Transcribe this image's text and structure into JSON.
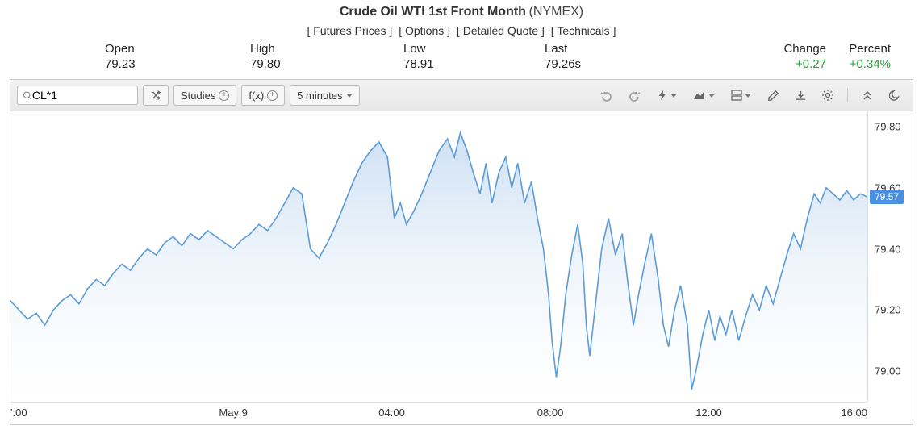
{
  "header": {
    "title_main": "Crude Oil WTI 1st Front Month",
    "title_sub": "(NYMEX)",
    "links": [
      "Futures Prices",
      "Options",
      "Detailed Quote",
      "Technicals"
    ]
  },
  "stats": {
    "open": {
      "label": "Open",
      "value": "79.23"
    },
    "high": {
      "label": "High",
      "value": "79.80"
    },
    "low": {
      "label": "Low",
      "value": "78.91"
    },
    "last": {
      "label": "Last",
      "value": "79.26s"
    },
    "change": {
      "label": "Change",
      "value": "+0.27",
      "positive": true
    },
    "percent": {
      "label": "Percent",
      "value": "+0.34%",
      "positive": true
    }
  },
  "toolbar": {
    "search_value": "CL*1",
    "studies_label": "Studies",
    "fx_label": "f(x)",
    "interval_label": "5 minutes"
  },
  "chart": {
    "type": "area",
    "line_color": "#5a9bd8",
    "area_top_color": "#c9ddf2",
    "area_bottom_color": "#ffffff",
    "line_width": 1.6,
    "background": "#ffffff",
    "y_axis": {
      "min": 78.9,
      "max": 79.85,
      "ticks": [
        79.0,
        79.2,
        79.4,
        79.6,
        79.8
      ],
      "tick_labels": [
        "79.00",
        "79.20",
        "79.40",
        "79.60",
        "79.80"
      ]
    },
    "x_axis": {
      "tick_positions": [
        0.0,
        0.26,
        0.445,
        0.63,
        0.815,
        1.0
      ],
      "tick_labels": [
        "':00",
        "May 9",
        "04:00",
        "08:00",
        "12:00",
        "16:00"
      ]
    },
    "current_price": {
      "value": 79.57,
      "label": "79.57"
    },
    "data": [
      {
        "x": 0.0,
        "y": 79.23
      },
      {
        "x": 0.01,
        "y": 79.2
      },
      {
        "x": 0.02,
        "y": 79.17
      },
      {
        "x": 0.03,
        "y": 79.19
      },
      {
        "x": 0.04,
        "y": 79.15
      },
      {
        "x": 0.05,
        "y": 79.2
      },
      {
        "x": 0.06,
        "y": 79.23
      },
      {
        "x": 0.07,
        "y": 79.25
      },
      {
        "x": 0.08,
        "y": 79.22
      },
      {
        "x": 0.09,
        "y": 79.27
      },
      {
        "x": 0.1,
        "y": 79.3
      },
      {
        "x": 0.11,
        "y": 79.28
      },
      {
        "x": 0.12,
        "y": 79.32
      },
      {
        "x": 0.13,
        "y": 79.35
      },
      {
        "x": 0.14,
        "y": 79.33
      },
      {
        "x": 0.15,
        "y": 79.37
      },
      {
        "x": 0.16,
        "y": 79.4
      },
      {
        "x": 0.17,
        "y": 79.38
      },
      {
        "x": 0.18,
        "y": 79.42
      },
      {
        "x": 0.19,
        "y": 79.44
      },
      {
        "x": 0.2,
        "y": 79.41
      },
      {
        "x": 0.21,
        "y": 79.45
      },
      {
        "x": 0.22,
        "y": 79.43
      },
      {
        "x": 0.23,
        "y": 79.46
      },
      {
        "x": 0.24,
        "y": 79.44
      },
      {
        "x": 0.25,
        "y": 79.42
      },
      {
        "x": 0.26,
        "y": 79.4
      },
      {
        "x": 0.27,
        "y": 79.43
      },
      {
        "x": 0.28,
        "y": 79.45
      },
      {
        "x": 0.29,
        "y": 79.48
      },
      {
        "x": 0.3,
        "y": 79.46
      },
      {
        "x": 0.31,
        "y": 79.5
      },
      {
        "x": 0.32,
        "y": 79.55
      },
      {
        "x": 0.33,
        "y": 79.6
      },
      {
        "x": 0.34,
        "y": 79.58
      },
      {
        "x": 0.35,
        "y": 79.4
      },
      {
        "x": 0.36,
        "y": 79.37
      },
      {
        "x": 0.37,
        "y": 79.42
      },
      {
        "x": 0.38,
        "y": 79.48
      },
      {
        "x": 0.39,
        "y": 79.55
      },
      {
        "x": 0.4,
        "y": 79.62
      },
      {
        "x": 0.41,
        "y": 79.68
      },
      {
        "x": 0.42,
        "y": 79.72
      },
      {
        "x": 0.43,
        "y": 79.75
      },
      {
        "x": 0.44,
        "y": 79.7
      },
      {
        "x": 0.448,
        "y": 79.5
      },
      {
        "x": 0.455,
        "y": 79.55
      },
      {
        "x": 0.462,
        "y": 79.48
      },
      {
        "x": 0.47,
        "y": 79.52
      },
      {
        "x": 0.48,
        "y": 79.58
      },
      {
        "x": 0.49,
        "y": 79.65
      },
      {
        "x": 0.5,
        "y": 79.72
      },
      {
        "x": 0.51,
        "y": 79.76
      },
      {
        "x": 0.518,
        "y": 79.7
      },
      {
        "x": 0.525,
        "y": 79.78
      },
      {
        "x": 0.533,
        "y": 79.72
      },
      {
        "x": 0.54,
        "y": 79.65
      },
      {
        "x": 0.548,
        "y": 79.58
      },
      {
        "x": 0.555,
        "y": 79.68
      },
      {
        "x": 0.562,
        "y": 79.55
      },
      {
        "x": 0.57,
        "y": 79.65
      },
      {
        "x": 0.578,
        "y": 79.7
      },
      {
        "x": 0.585,
        "y": 79.6
      },
      {
        "x": 0.592,
        "y": 79.68
      },
      {
        "x": 0.6,
        "y": 79.55
      },
      {
        "x": 0.608,
        "y": 79.62
      },
      {
        "x": 0.615,
        "y": 79.5
      },
      {
        "x": 0.622,
        "y": 79.4
      },
      {
        "x": 0.628,
        "y": 79.25
      },
      {
        "x": 0.632,
        "y": 79.1
      },
      {
        "x": 0.637,
        "y": 78.98
      },
      {
        "x": 0.642,
        "y": 79.08
      },
      {
        "x": 0.648,
        "y": 79.25
      },
      {
        "x": 0.655,
        "y": 79.38
      },
      {
        "x": 0.662,
        "y": 79.48
      },
      {
        "x": 0.668,
        "y": 79.35
      },
      {
        "x": 0.672,
        "y": 79.15
      },
      {
        "x": 0.676,
        "y": 79.05
      },
      {
        "x": 0.682,
        "y": 79.2
      },
      {
        "x": 0.69,
        "y": 79.4
      },
      {
        "x": 0.698,
        "y": 79.5
      },
      {
        "x": 0.706,
        "y": 79.38
      },
      {
        "x": 0.714,
        "y": 79.45
      },
      {
        "x": 0.72,
        "y": 79.3
      },
      {
        "x": 0.727,
        "y": 79.15
      },
      {
        "x": 0.733,
        "y": 79.25
      },
      {
        "x": 0.74,
        "y": 79.35
      },
      {
        "x": 0.748,
        "y": 79.45
      },
      {
        "x": 0.756,
        "y": 79.3
      },
      {
        "x": 0.762,
        "y": 79.15
      },
      {
        "x": 0.768,
        "y": 79.08
      },
      {
        "x": 0.775,
        "y": 79.2
      },
      {
        "x": 0.782,
        "y": 79.28
      },
      {
        "x": 0.79,
        "y": 79.15
      },
      {
        "x": 0.795,
        "y": 78.94
      },
      {
        "x": 0.8,
        "y": 79.0
      },
      {
        "x": 0.808,
        "y": 79.12
      },
      {
        "x": 0.815,
        "y": 79.2
      },
      {
        "x": 0.822,
        "y": 79.1
      },
      {
        "x": 0.828,
        "y": 79.18
      },
      {
        "x": 0.835,
        "y": 79.12
      },
      {
        "x": 0.842,
        "y": 79.2
      },
      {
        "x": 0.85,
        "y": 79.1
      },
      {
        "x": 0.858,
        "y": 79.18
      },
      {
        "x": 0.866,
        "y": 79.25
      },
      {
        "x": 0.874,
        "y": 79.2
      },
      {
        "x": 0.882,
        "y": 79.28
      },
      {
        "x": 0.89,
        "y": 79.22
      },
      {
        "x": 0.898,
        "y": 79.3
      },
      {
        "x": 0.906,
        "y": 79.38
      },
      {
        "x": 0.914,
        "y": 79.45
      },
      {
        "x": 0.922,
        "y": 79.4
      },
      {
        "x": 0.93,
        "y": 79.5
      },
      {
        "x": 0.938,
        "y": 79.58
      },
      {
        "x": 0.945,
        "y": 79.55
      },
      {
        "x": 0.952,
        "y": 79.6
      },
      {
        "x": 0.96,
        "y": 79.58
      },
      {
        "x": 0.968,
        "y": 79.56
      },
      {
        "x": 0.976,
        "y": 79.59
      },
      {
        "x": 0.984,
        "y": 79.56
      },
      {
        "x": 0.992,
        "y": 79.58
      },
      {
        "x": 1.0,
        "y": 79.57
      }
    ]
  }
}
